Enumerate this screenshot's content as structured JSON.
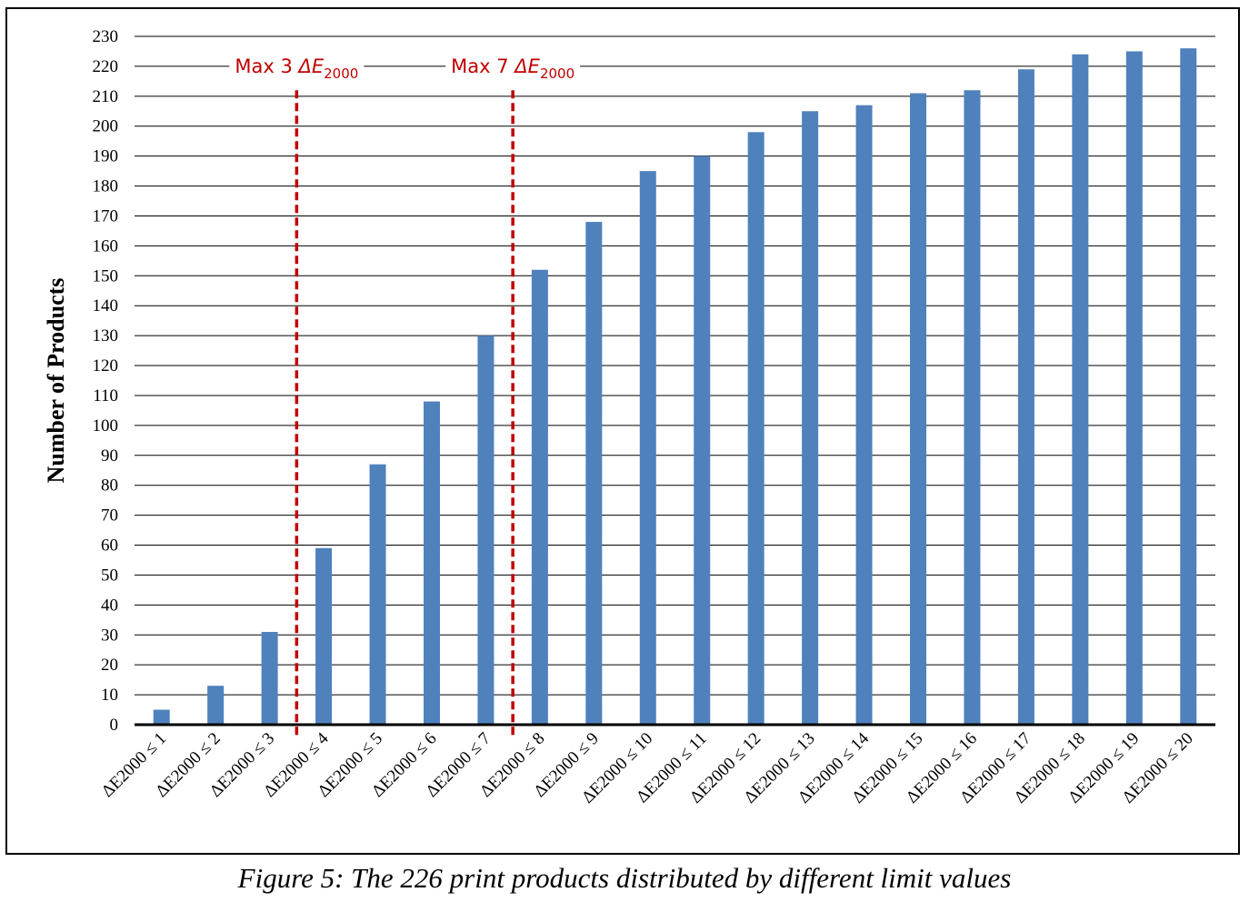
{
  "caption": "Figure 5: The 226 print products distributed by different limit values",
  "colors": {
    "bar": "#4f81bd",
    "limit_line": "#c00000",
    "grid": "#000000"
  },
  "chart_data": {
    "type": "bar",
    "title": "",
    "xlabel": "",
    "ylabel": "Number of Products",
    "ylim": [
      0,
      230
    ],
    "ytick_step": 10,
    "grid": true,
    "categories": [
      "ΔE2000 ≤ 1",
      "ΔE2000 ≤ 2",
      "ΔE2000 ≤ 3",
      "ΔE2000 ≤ 4",
      "ΔE2000 ≤ 5",
      "ΔE2000 ≤ 6",
      "ΔE2000 ≤ 7",
      "ΔE2000 ≤ 8",
      "ΔE2000 ≤ 9",
      "ΔE2000 ≤ 10",
      "ΔE2000 ≤ 11",
      "ΔE2000 ≤ 12",
      "ΔE2000 ≤ 13",
      "ΔE2000 ≤ 14",
      "ΔE2000 ≤ 15",
      "ΔE2000 ≤ 16",
      "ΔE2000 ≤ 17",
      "ΔE2000 ≤ 18",
      "ΔE2000 ≤ 19",
      "ΔE2000 ≤ 20"
    ],
    "values": [
      5,
      13,
      31,
      59,
      87,
      108,
      130,
      152,
      168,
      185,
      190,
      198,
      205,
      207,
      211,
      212,
      219,
      224,
      225,
      226
    ],
    "annotations": [
      {
        "label": "Max 3",
        "symbol": "ΔE",
        "subscript": "2000",
        "after_category": 3
      },
      {
        "label": "Max 7",
        "symbol": "ΔE",
        "subscript": "2000",
        "after_category": 7
      }
    ]
  }
}
